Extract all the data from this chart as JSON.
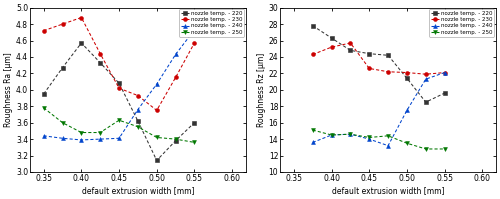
{
  "left": {
    "xlabel": "default extrusion width [mm]",
    "ylabel": "Roughness Ra [μm]",
    "xlim": [
      0.332,
      0.618
    ],
    "ylim": [
      3.0,
      5.0
    ],
    "xticks": [
      0.35,
      0.4,
      0.45,
      0.5,
      0.55,
      0.6
    ],
    "yticks": [
      3.0,
      3.2,
      3.4,
      3.6,
      3.8,
      4.0,
      4.2,
      4.4,
      4.6,
      4.8,
      5.0
    ],
    "series": [
      {
        "label": "nozzle temp. - 220",
        "color": "#333333",
        "marker": "s",
        "x": [
          0.35,
          0.375,
          0.4,
          0.425,
          0.45,
          0.475,
          0.5,
          0.525,
          0.55
        ],
        "y": [
          3.95,
          4.27,
          4.57,
          4.33,
          4.08,
          3.62,
          3.14,
          3.38,
          3.6
        ]
      },
      {
        "label": "nozzle temp. - 230",
        "color": "#cc0000",
        "marker": "o",
        "x": [
          0.35,
          0.375,
          0.4,
          0.425,
          0.45,
          0.475,
          0.5,
          0.525,
          0.55
        ],
        "y": [
          4.72,
          4.8,
          4.88,
          4.44,
          4.02,
          3.93,
          3.75,
          4.15,
          4.57
        ]
      },
      {
        "label": "nozzle temp. - 240",
        "color": "#0044cc",
        "marker": "^",
        "x": [
          0.35,
          0.375,
          0.4,
          0.425,
          0.45,
          0.475,
          0.5,
          0.525,
          0.55
        ],
        "y": [
          3.44,
          3.41,
          3.39,
          3.4,
          3.41,
          3.76,
          4.07,
          4.43,
          4.73
        ]
      },
      {
        "label": "nozzle temp. - 250",
        "color": "#007700",
        "marker": "v",
        "x": [
          0.35,
          0.375,
          0.4,
          0.425,
          0.45,
          0.475,
          0.5,
          0.525,
          0.55
        ],
        "y": [
          3.78,
          3.6,
          3.48,
          3.48,
          3.63,
          3.55,
          3.42,
          3.4,
          3.36
        ]
      }
    ]
  },
  "right": {
    "ylabel": "Roughness Rz [μm]",
    "xlabel": "default extrusion width [mm]",
    "xlim": [
      0.332,
      0.618
    ],
    "ylim": [
      10,
      30
    ],
    "xticks": [
      0.35,
      0.4,
      0.45,
      0.5,
      0.55,
      0.6
    ],
    "yticks": [
      10,
      12,
      14,
      16,
      18,
      20,
      22,
      24,
      26,
      28,
      30
    ],
    "series": [
      {
        "label": "nozzle temp. - 220",
        "color": "#333333",
        "marker": "s",
        "x": [
          0.375,
          0.4,
          0.425,
          0.45,
          0.475,
          0.5,
          0.525,
          0.55
        ],
        "y": [
          27.8,
          26.3,
          24.8,
          24.4,
          24.2,
          21.4,
          18.5,
          19.6
        ]
      },
      {
        "label": "nozzle temp. - 230",
        "color": "#cc0000",
        "marker": "o",
        "x": [
          0.375,
          0.4,
          0.425,
          0.45,
          0.475,
          0.5,
          0.525,
          0.55
        ],
        "y": [
          24.3,
          25.2,
          25.7,
          22.6,
          22.2,
          22.1,
          21.9,
          22.1
        ]
      },
      {
        "label": "nozzle temp. - 240",
        "color": "#0044cc",
        "marker": "^",
        "x": [
          0.375,
          0.4,
          0.425,
          0.45,
          0.475,
          0.5,
          0.525,
          0.55
        ],
        "y": [
          13.6,
          14.5,
          14.6,
          14.0,
          13.2,
          17.5,
          21.3,
          22.1
        ]
      },
      {
        "label": "nozzle temp. - 250",
        "color": "#007700",
        "marker": "v",
        "x": [
          0.375,
          0.4,
          0.425,
          0.45,
          0.475,
          0.5,
          0.525,
          0.55
        ],
        "y": [
          15.1,
          14.5,
          14.6,
          14.2,
          14.4,
          13.5,
          12.8,
          12.8
        ]
      }
    ]
  },
  "bg_color": "#ffffff",
  "tick_fontsize": 5.5,
  "label_fontsize": 5.5,
  "legend_fontsize": 4.0,
  "marker_size": 2.8,
  "line_width": 0.75
}
